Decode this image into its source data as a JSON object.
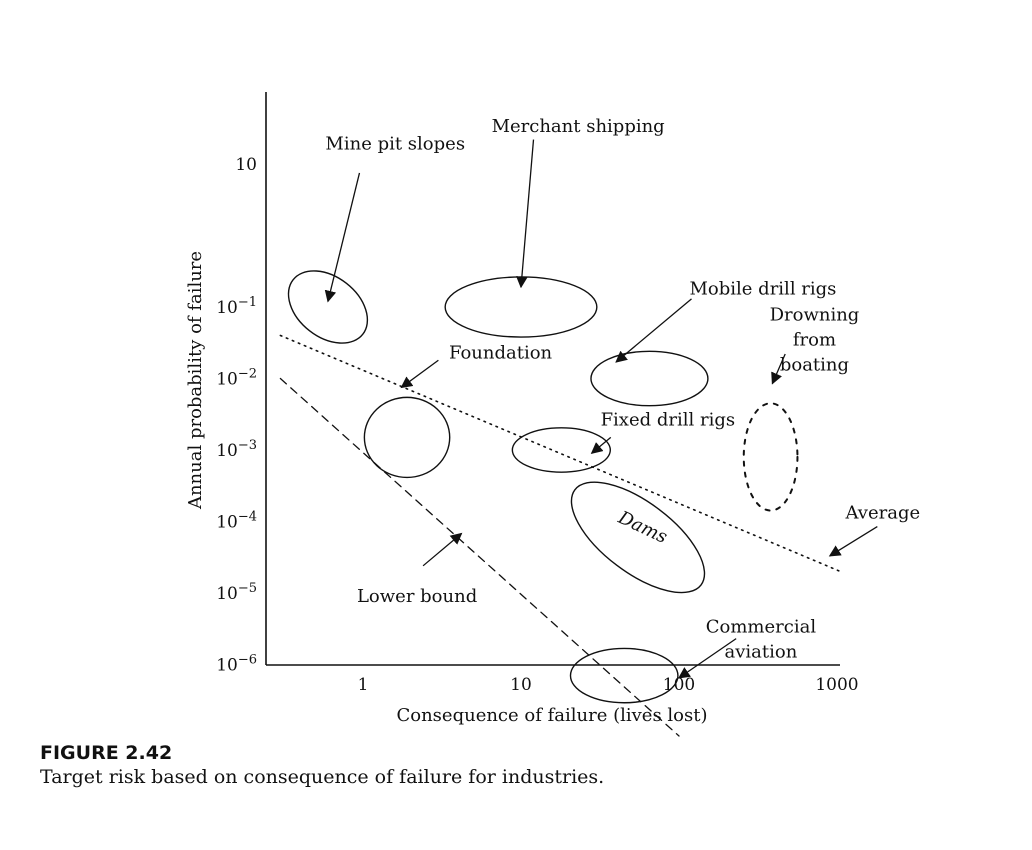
{
  "caption": {
    "label": "FIGURE 2.42",
    "text": "Target risk based on consequence of failure for industries."
  },
  "chart_data": {
    "type": "scatter",
    "title": "",
    "xlabel": "Consequence of failure (lives lost)",
    "ylabel": "Annual probability of failure",
    "x_scale": "log",
    "y_scale": "log",
    "xlim": [
      0.3,
      1100
    ],
    "ylim": [
      1e-07,
      100
    ],
    "x_ticks": [
      {
        "value": 1,
        "label": "1"
      },
      {
        "value": 10,
        "label": "10"
      },
      {
        "value": 100,
        "label": "100"
      },
      {
        "value": 1000,
        "label": "1000"
      }
    ],
    "y_ticks": [
      {
        "value": 10,
        "base": "10",
        "exp": ""
      },
      {
        "value": 0.1,
        "base": "10",
        "exp": "−1"
      },
      {
        "value": 0.01,
        "base": "10",
        "exp": "−2"
      },
      {
        "value": 0.001,
        "base": "10",
        "exp": "−3"
      },
      {
        "value": 0.0001,
        "base": "10",
        "exp": "−4"
      },
      {
        "value": 1e-05,
        "base": "10",
        "exp": "−5"
      },
      {
        "value": 1e-06,
        "base": "10",
        "exp": "−6"
      }
    ],
    "grid": false,
    "lines": [
      {
        "name": "Average",
        "style": "dotted",
        "from": [
          0.3,
          0.04
        ],
        "to": [
          1050,
          2e-05
        ]
      },
      {
        "name": "Lower bound",
        "style": "dashed",
        "from": [
          0.3,
          0.01
        ],
        "to": [
          100,
          1e-07
        ]
      }
    ],
    "regions": [
      {
        "label": "Mine pit slopes",
        "center": [
          0.6,
          0.1
        ],
        "rx_dec": 0.28,
        "ry_dec": 0.42,
        "rot": 38,
        "style": "solid"
      },
      {
        "label": "Merchant shipping",
        "center": [
          10,
          0.1
        ],
        "rx_dec": 0.48,
        "ry_dec": 0.42,
        "rot": 0,
        "style": "solid"
      },
      {
        "label": "Mobile drill rigs",
        "center": [
          65,
          0.01
        ],
        "rx_dec": 0.37,
        "ry_dec": 0.38,
        "rot": 0,
        "style": "solid"
      },
      {
        "label": "Foundation",
        "center": [
          1.9,
          0.0015
        ],
        "rx_dec": 0.27,
        "ry_dec": 0.56,
        "rot": 0,
        "style": "solid"
      },
      {
        "label": "Fixed drill rigs",
        "center": [
          18,
          0.001
        ],
        "rx_dec": 0.31,
        "ry_dec": 0.31,
        "rot": 0,
        "style": "solid"
      },
      {
        "label": "Dams",
        "center": [
          55,
          6e-05
        ],
        "rx_dec": 0.5,
        "ry_dec": 0.49,
        "rot": 37,
        "style": "solid"
      },
      {
        "label": "Drowning from boating",
        "center": [
          380,
          0.0008
        ],
        "rx_dec": 0.17,
        "ry_dec": 0.75,
        "rot": 0,
        "style": "dashed"
      },
      {
        "label": "Commercial aviation",
        "center": [
          45,
          7e-07
        ],
        "rx_dec": 0.34,
        "ry_dec": 0.38,
        "rot": 0,
        "style": "solid"
      }
    ],
    "annotations": [
      {
        "id": "mine",
        "lines": [
          "Mine pit slopes"
        ],
        "anchor": "middle",
        "at": [
          1.6,
          16
        ],
        "arrow": {
          "from": [
            0.95,
            7.5
          ],
          "to": [
            0.6,
            0.12
          ]
        },
        "italic": false
      },
      {
        "id": "merchant",
        "lines": [
          "Merchant shipping"
        ],
        "anchor": "middle",
        "at": [
          23,
          28
        ],
        "arrow": {
          "from": [
            12,
            22
          ],
          "to": [
            10,
            0.19
          ]
        },
        "italic": false
      },
      {
        "id": "mobile",
        "lines": [
          "Mobile drill rigs"
        ],
        "anchor": "middle",
        "at": [
          340,
          0.15
        ],
        "arrow": {
          "from": [
            120,
            0.13
          ],
          "to": [
            40,
            0.017
          ]
        },
        "italic": false
      },
      {
        "id": "drowning",
        "lines": [
          "Drowning",
          "from",
          "boating"
        ],
        "anchor": "middle",
        "at": [
          720,
          0.065
        ],
        "arrow": {
          "from": [
            470,
            0.022
          ],
          "to": [
            390,
            0.0085
          ]
        },
        "italic": false
      },
      {
        "id": "foundation",
        "lines": [
          "Foundation"
        ],
        "anchor": "start",
        "at": [
          3.5,
          0.019
        ],
        "arrow": {
          "from": [
            3.0,
            0.018
          ],
          "to": [
            1.75,
            0.0075
          ]
        },
        "italic": false
      },
      {
        "id": "fixed",
        "lines": [
          "Fixed drill rigs"
        ],
        "anchor": "middle",
        "at": [
          85,
          0.0022
        ],
        "arrow": {
          "from": [
            37,
            0.0015
          ],
          "to": [
            28,
            0.0009
          ]
        },
        "italic": false
      },
      {
        "id": "dams",
        "lines": [
          "Dams"
        ],
        "anchor": "middle",
        "at": [
          57,
          7e-05
        ],
        "arrow": null,
        "italic": true,
        "rotate": 25
      },
      {
        "id": "average",
        "lines": [
          "Average"
        ],
        "anchor": "middle",
        "at": [
          1950,
          0.00011
        ],
        "arrow": {
          "from": [
            1800,
            8.5e-05
          ],
          "to": [
            900,
            3.3e-05
          ]
        },
        "italic": false
      },
      {
        "id": "lower",
        "lines": [
          "Lower bound"
        ],
        "anchor": "middle",
        "at": [
          2.2,
          7.5e-06
        ],
        "arrow": {
          "from": [
            2.4,
            2.4e-05
          ],
          "to": [
            4.2,
            6.8e-05
          ]
        },
        "italic": false
      },
      {
        "id": "aviation",
        "lines": [
          "Commercial",
          "aviation"
        ],
        "anchor": "middle",
        "at": [
          330,
          2.8e-06
        ],
        "arrow": {
          "from": [
            230,
            2.3e-06
          ],
          "to": [
            100,
            6.5e-07
          ]
        },
        "italic": false
      }
    ]
  }
}
